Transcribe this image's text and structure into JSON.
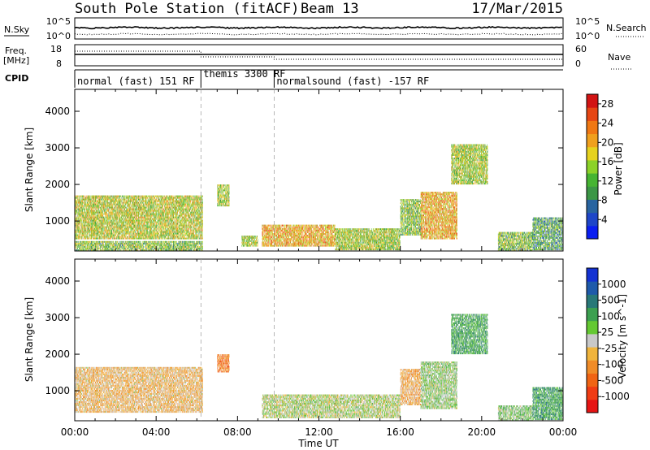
{
  "header": {
    "title": "South Pole Station (fitACF)",
    "beam": "Beam 13",
    "date": "17/Mar/2015"
  },
  "top_panel": {
    "left_label": "N.Sky",
    "left_ticks": [
      "10^5",
      "10^0"
    ],
    "right_label": "N.Search",
    "right_ticks": [
      "10^5",
      "10^0"
    ]
  },
  "freq_panel": {
    "left_label_1": "Freq.",
    "left_label_2": "[MHz]",
    "left_ticks": [
      "18",
      "8"
    ],
    "right_label": "Nave",
    "right_ticks": [
      "60",
      "0"
    ]
  },
  "cpid": {
    "label": "CPID",
    "segments": [
      {
        "text": "normal (fast) 151 RF",
        "start_hour": 0.0
      },
      {
        "text": "themis 3300 RF",
        "start_hour": 6.2
      },
      {
        "text": "normalsound (fast) -157 RF",
        "start_hour": 9.8
      }
    ]
  },
  "chart_data": [
    {
      "type": "heatmap",
      "title": "",
      "xlabel": "Time UT",
      "ylabel": "Slant Range [km]",
      "xlim": [
        0,
        24
      ],
      "ylim": [
        180,
        4600
      ],
      "x_ticks": [
        "00:00",
        "04:00",
        "08:00",
        "12:00",
        "16:00",
        "20:00",
        "00:00"
      ],
      "y_ticks": [
        1000,
        2000,
        3000,
        4000
      ],
      "colorbar": {
        "label": "Power [dB]",
        "ticks": [
          "4",
          "8",
          "12",
          "16",
          "20",
          "24",
          "28"
        ],
        "range": [
          0,
          30
        ],
        "colors": [
          "#0a1ef0",
          "#1e46c8",
          "#2864a0",
          "#3c9646",
          "#46b432",
          "#8cd228",
          "#e6d21e",
          "#f0a01e",
          "#f07814",
          "#e64614",
          "#d21414"
        ]
      },
      "regions": [
        {
          "t0": 0.0,
          "t1": 6.3,
          "r0": 500,
          "r1": 1700,
          "level": 0.55
        },
        {
          "t0": 0.0,
          "t1": 6.3,
          "r0": 180,
          "r1": 450,
          "level": 0.45
        },
        {
          "t0": 7.0,
          "t1": 7.6,
          "r0": 1400,
          "r1": 2000,
          "level": 0.5
        },
        {
          "t0": 8.2,
          "t1": 9.0,
          "r0": 300,
          "r1": 600,
          "level": 0.5
        },
        {
          "t0": 9.2,
          "t1": 12.8,
          "r0": 300,
          "r1": 900,
          "level": 0.7
        },
        {
          "t0": 12.8,
          "t1": 16.0,
          "r0": 200,
          "r1": 800,
          "level": 0.5
        },
        {
          "t0": 16.0,
          "t1": 17.0,
          "r0": 600,
          "r1": 1600,
          "level": 0.45
        },
        {
          "t0": 17.0,
          "t1": 18.8,
          "r0": 500,
          "r1": 1800,
          "level": 0.7
        },
        {
          "t0": 18.5,
          "t1": 20.3,
          "r0": 2000,
          "r1": 3100,
          "level": 0.5
        },
        {
          "t0": 20.8,
          "t1": 22.5,
          "r0": 180,
          "r1": 700,
          "level": 0.45
        },
        {
          "t0": 22.5,
          "t1": 24.0,
          "r0": 200,
          "r1": 1100,
          "level": 0.35
        }
      ]
    },
    {
      "type": "heatmap",
      "title": "",
      "xlabel": "Time UT",
      "ylabel": "Slant Range [km]",
      "xlim": [
        0,
        24
      ],
      "ylim": [
        180,
        4600
      ],
      "x_ticks": [
        "00:00",
        "04:00",
        "08:00",
        "12:00",
        "16:00",
        "20:00",
        "00:00"
      ],
      "y_ticks": [
        1000,
        2000,
        3000,
        4000
      ],
      "colorbar": {
        "label": "Velocity [m s^-1]",
        "ticks": [
          "1000",
          "500",
          "100",
          "25",
          "-25",
          "-100",
          "-500",
          "-1000"
        ],
        "range": [
          -1200,
          1200
        ],
        "colors": [
          "#e61414",
          "#f03c14",
          "#f06414",
          "#f08c28",
          "#f0b43c",
          "#c8c8c8",
          "#64c832",
          "#3ca050",
          "#287878",
          "#1e5aaa",
          "#1432d2"
        ]
      },
      "regions": [
        {
          "t0": 0.0,
          "t1": 6.3,
          "r0": 400,
          "r1": 1650,
          "value": -220
        },
        {
          "t0": 7.0,
          "t1": 7.6,
          "r0": 1500,
          "r1": 2000,
          "value": -600
        },
        {
          "t0": 9.2,
          "t1": 16.0,
          "r0": 250,
          "r1": 900,
          "value": 60
        },
        {
          "t0": 16.0,
          "t1": 17.0,
          "r0": 600,
          "r1": 1600,
          "value": -300
        },
        {
          "t0": 17.0,
          "t1": 18.8,
          "r0": 500,
          "r1": 1800,
          "value": 150
        },
        {
          "t0": 18.5,
          "t1": 20.3,
          "r0": 2000,
          "r1": 3100,
          "value": 450
        },
        {
          "t0": 20.8,
          "t1": 22.5,
          "r0": 180,
          "r1": 600,
          "value": 200
        },
        {
          "t0": 22.5,
          "t1": 24.0,
          "r0": 200,
          "r1": 1100,
          "value": 500
        }
      ]
    }
  ]
}
